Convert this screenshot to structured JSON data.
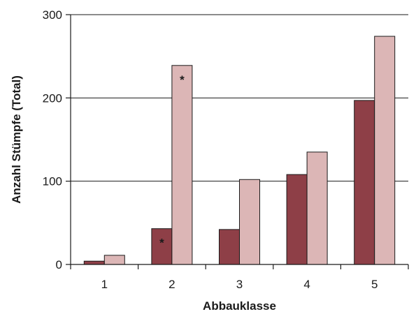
{
  "chart_data": {
    "type": "bar",
    "xlabel": "Abbauklasse",
    "ylabel": "Anzahl Stümpfe (Total)",
    "categories": [
      "1",
      "2",
      "3",
      "4",
      "5"
    ],
    "series": [
      {
        "values": [
          4,
          43,
          42,
          108,
          197
        ]
      },
      {
        "values": [
          11,
          239,
          102,
          135,
          274
        ]
      }
    ],
    "colors": [
      "#8e3f47",
      "#dcb6b6"
    ],
    "ylim": [
      0,
      300
    ],
    "yticks": [
      0,
      100,
      200,
      300
    ],
    "grid": true,
    "legend": "none",
    "annotations": [
      {
        "text": "*",
        "category": "2",
        "series": 0
      },
      {
        "text": "*",
        "category": "2",
        "series": 1
      }
    ]
  }
}
